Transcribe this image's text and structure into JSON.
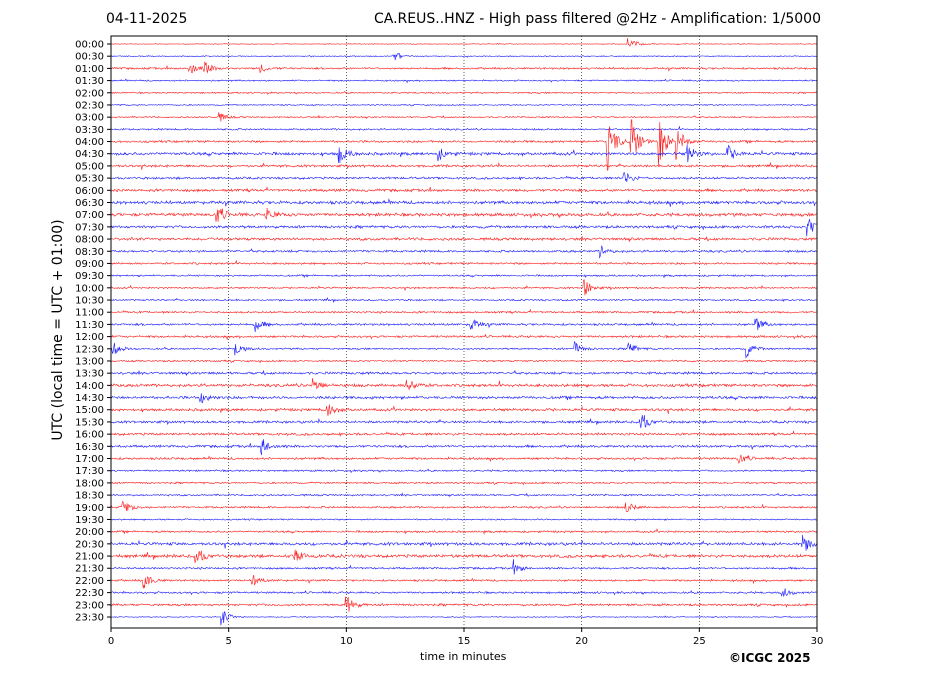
{
  "header": {
    "date": "04-11-2025",
    "title": "CA.REUS..HNZ - High pass filtered @2Hz - Amplification: 1/5000"
  },
  "footer": {
    "copyright": "©ICGC 2025"
  },
  "chart_data": {
    "type": "line",
    "subtype": "helicorder",
    "xlabel": "time in minutes",
    "ylabel": "UTC (local time = UTC + 01:00)",
    "xlim": [
      0,
      30
    ],
    "xticks": [
      "0",
      "5",
      "10",
      "15",
      "20",
      "25",
      "30"
    ],
    "grid": "vertical dotted every 5 minutes",
    "colors": [
      "#ff0000",
      "#0000ff"
    ],
    "rows": [
      "00:00",
      "00:30",
      "01:00",
      "01:30",
      "02:00",
      "02:30",
      "03:00",
      "03:30",
      "04:00",
      "04:30",
      "05:00",
      "05:30",
      "06:00",
      "06:30",
      "07:00",
      "07:30",
      "08:00",
      "08:30",
      "09:00",
      "09:30",
      "10:00",
      "10:30",
      "11:00",
      "11:30",
      "12:00",
      "12:30",
      "13:00",
      "13:30",
      "14:00",
      "14:30",
      "15:00",
      "15:30",
      "16:00",
      "16:30",
      "17:00",
      "17:30",
      "18:00",
      "18:30",
      "19:00",
      "19:30",
      "20:00",
      "20:30",
      "21:00",
      "21:30",
      "22:00",
      "22:30",
      "23:00",
      "23:30"
    ],
    "noise_level": [
      0.3,
      0.4,
      0.8,
      0.6,
      0.6,
      0.5,
      0.6,
      0.7,
      0.9,
      1.2,
      1.0,
      0.9,
      1.1,
      1.3,
      1.3,
      1.1,
      1.1,
      0.9,
      0.8,
      0.7,
      0.7,
      0.7,
      0.8,
      0.9,
      0.9,
      0.7,
      0.7,
      1.0,
      1.2,
      1.1,
      1.1,
      1.0,
      1.0,
      1.0,
      0.9,
      0.7,
      0.7,
      0.7,
      0.8,
      0.6,
      0.8,
      1.2,
      1.3,
      0.8,
      0.8,
      0.8,
      0.9,
      0.4
    ],
    "events": [
      {
        "row": "00:00",
        "minute": 22.0,
        "amp": 8
      },
      {
        "row": "00:30",
        "minute": 12.0,
        "amp": 6
      },
      {
        "row": "01:00",
        "minute": 3.3,
        "amp": 9
      },
      {
        "row": "01:00",
        "minute": 4.0,
        "amp": 6
      },
      {
        "row": "01:00",
        "minute": 6.3,
        "amp": 5
      },
      {
        "row": "03:00",
        "minute": 4.6,
        "amp": 5
      },
      {
        "row": "04:00",
        "minute": 21.1,
        "amp": 30
      },
      {
        "row": "04:00",
        "minute": 22.1,
        "amp": 25
      },
      {
        "row": "04:00",
        "minute": 23.3,
        "amp": 25
      },
      {
        "row": "04:00",
        "minute": 24.0,
        "amp": 20
      },
      {
        "row": "04:30",
        "minute": 9.7,
        "amp": 10
      },
      {
        "row": "04:30",
        "minute": 13.9,
        "amp": 7
      },
      {
        "row": "04:30",
        "minute": 24.5,
        "amp": 9
      },
      {
        "row": "04:30",
        "minute": 26.2,
        "amp": 9
      },
      {
        "row": "05:30",
        "minute": 21.8,
        "amp": 8
      },
      {
        "row": "07:00",
        "minute": 4.5,
        "amp": 10
      },
      {
        "row": "07:00",
        "minute": 6.6,
        "amp": 7
      },
      {
        "row": "07:30",
        "minute": 29.6,
        "amp": 10
      },
      {
        "row": "08:30",
        "minute": 20.8,
        "amp": 6
      },
      {
        "row": "10:00",
        "minute": 20.1,
        "amp": 10
      },
      {
        "row": "11:30",
        "minute": 6.1,
        "amp": 8
      },
      {
        "row": "11:30",
        "minute": 15.3,
        "amp": 7
      },
      {
        "row": "11:30",
        "minute": 27.4,
        "amp": 7
      },
      {
        "row": "12:30",
        "minute": 0.1,
        "amp": 7
      },
      {
        "row": "12:30",
        "minute": 5.3,
        "amp": 7
      },
      {
        "row": "12:30",
        "minute": 19.7,
        "amp": 7
      },
      {
        "row": "12:30",
        "minute": 22.0,
        "amp": 7
      },
      {
        "row": "12:30",
        "minute": 27.0,
        "amp": 9
      },
      {
        "row": "14:00",
        "minute": 8.6,
        "amp": 8
      },
      {
        "row": "14:00",
        "minute": 12.6,
        "amp": 8
      },
      {
        "row": "14:30",
        "minute": 3.8,
        "amp": 8
      },
      {
        "row": "15:00",
        "minute": 9.2,
        "amp": 8
      },
      {
        "row": "15:30",
        "minute": 22.5,
        "amp": 11
      },
      {
        "row": "16:30",
        "minute": 6.4,
        "amp": 10
      },
      {
        "row": "17:00",
        "minute": 26.7,
        "amp": 6
      },
      {
        "row": "19:00",
        "minute": 0.5,
        "amp": 9
      },
      {
        "row": "19:00",
        "minute": 21.9,
        "amp": 6
      },
      {
        "row": "20:30",
        "minute": 29.4,
        "amp": 9
      },
      {
        "row": "21:00",
        "minute": 3.6,
        "amp": 10
      },
      {
        "row": "21:00",
        "minute": 7.8,
        "amp": 7
      },
      {
        "row": "21:30",
        "minute": 17.1,
        "amp": 7
      },
      {
        "row": "22:00",
        "minute": 1.4,
        "amp": 9
      },
      {
        "row": "22:00",
        "minute": 6.0,
        "amp": 6
      },
      {
        "row": "22:30",
        "minute": 28.5,
        "amp": 6
      },
      {
        "row": "23:00",
        "minute": 10.0,
        "amp": 10
      },
      {
        "row": "23:30",
        "minute": 4.7,
        "amp": 9
      }
    ]
  }
}
